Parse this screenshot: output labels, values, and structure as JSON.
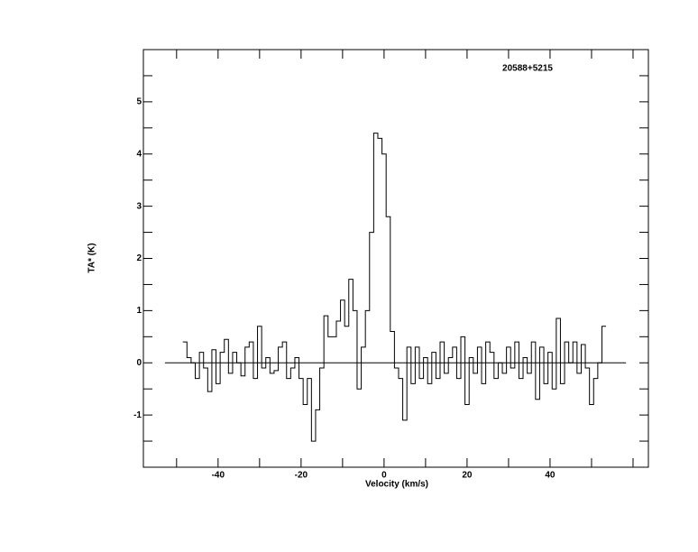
{
  "chart_data": {
    "type": "step",
    "title": "20588+5215",
    "x_label": "Velocity (km/s)",
    "y_label": "TA* (K)",
    "xlim": [
      -58,
      63.7
    ],
    "ylim": [
      -2,
      6
    ],
    "xticks": [
      -40,
      -20,
      0,
      20,
      40
    ],
    "xminor": [
      -50,
      -30,
      -10,
      10,
      30,
      50,
      60
    ],
    "yticks": [
      -1,
      0,
      1,
      2,
      3,
      4,
      5
    ],
    "yminor": [
      -1.5,
      -0.5,
      0.5,
      1.5,
      2.5,
      3.5,
      4.5,
      5.5
    ],
    "baseline": {
      "y": 0,
      "x": [
        -52.8,
        58.3
      ]
    },
    "color": "#000000",
    "x": [
      -48,
      -47,
      -46,
      -45,
      -44,
      -43,
      -42,
      -41,
      -40,
      -39,
      -38,
      -37,
      -36,
      -35,
      -34,
      -33,
      -32,
      -31,
      -30,
      -29,
      -28,
      -27,
      -26,
      -25,
      -24,
      -23,
      -22,
      -21,
      -20,
      -19,
      -18,
      -17,
      -16,
      -15,
      -14,
      -13,
      -12,
      -11,
      -10,
      -9,
      -8,
      -7,
      -6,
      -5,
      -4,
      -3,
      -2,
      -1,
      0,
      1,
      2,
      3,
      4,
      5,
      6,
      7,
      8,
      9,
      10,
      11,
      12,
      13,
      14,
      15,
      16,
      17,
      18,
      19,
      20,
      21,
      22,
      23,
      24,
      25,
      26,
      27,
      28,
      29,
      30,
      31,
      32,
      33,
      34,
      35,
      36,
      37,
      38,
      39,
      40,
      41,
      42,
      43,
      44,
      45,
      46,
      47,
      48,
      49,
      50,
      51,
      52,
      53
    ],
    "values": [
      0.4,
      0.1,
      0.0,
      -0.3,
      0.2,
      -0.1,
      -0.55,
      0.25,
      -0.4,
      0.2,
      0.45,
      -0.2,
      0.2,
      0.0,
      -0.25,
      0.3,
      0.4,
      -0.3,
      0.7,
      -0.1,
      0.1,
      -0.2,
      -0.15,
      0.3,
      0.4,
      -0.3,
      -0.1,
      0.1,
      -0.3,
      -0.8,
      -0.3,
      -1.5,
      -0.9,
      -0.1,
      0.9,
      0.5,
      0.5,
      0.8,
      1.2,
      0.7,
      1.6,
      1.0,
      -0.5,
      0.3,
      1.0,
      2.5,
      4.4,
      4.3,
      4.0,
      2.8,
      0.6,
      -0.1,
      -0.3,
      -1.1,
      0.3,
      -0.4,
      0.3,
      -0.3,
      0.1,
      -0.4,
      0.2,
      -0.3,
      0.4,
      -0.2,
      0.1,
      0.3,
      -0.3,
      0.5,
      -0.8,
      0.1,
      -0.2,
      0.3,
      -0.4,
      0.4,
      0.2,
      -0.3,
      0.0,
      -0.2,
      0.3,
      -0.1,
      0.4,
      -0.3,
      0.1,
      -0.2,
      0.4,
      -0.7,
      0.3,
      -0.4,
      0.2,
      -0.5,
      0.85,
      -0.4,
      0.4,
      0.0,
      0.4,
      -0.2,
      0.35,
      -0.1,
      -0.8,
      -0.3,
      0.0,
      0.7
    ]
  }
}
